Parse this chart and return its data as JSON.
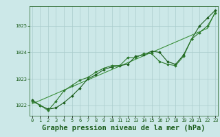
{
  "title": "Graphe pression niveau de la mer (hPa)",
  "xlabel_hours": [
    0,
    1,
    2,
    3,
    4,
    5,
    6,
    7,
    8,
    9,
    10,
    11,
    12,
    13,
    14,
    15,
    16,
    17,
    18,
    19,
    20,
    21,
    22,
    23
  ],
  "ylim": [
    1021.6,
    1025.75
  ],
  "yticks": [
    1022,
    1023,
    1024,
    1025
  ],
  "background_color": "#cce8e8",
  "grid_color": "#aacccc",
  "line_color": "#1a5c1a",
  "line_color2": "#2d7a2d",
  "line_color3": "#3a8f3a",
  "series1": [
    1022.2,
    1022.0,
    1021.85,
    1021.9,
    1022.1,
    1022.35,
    1022.65,
    1023.0,
    1023.15,
    1023.35,
    1023.45,
    1023.5,
    1023.55,
    1023.85,
    1023.9,
    1024.05,
    1024.0,
    1023.65,
    1023.55,
    1023.9,
    1024.5,
    1025.0,
    1025.3,
    1025.6
  ],
  "series2": [
    1022.15,
    1022.0,
    1021.8,
    1022.15,
    1022.55,
    1022.75,
    1022.95,
    1023.05,
    1023.25,
    1023.4,
    1023.5,
    1023.5,
    1023.8,
    1023.8,
    1023.95,
    1023.95,
    1023.65,
    1023.55,
    1023.5,
    1023.85,
    1024.5,
    1024.75,
    1025.0,
    1025.5
  ],
  "series3_linear": [
    1022.05,
    1022.18,
    1022.31,
    1022.44,
    1022.57,
    1022.7,
    1022.83,
    1022.96,
    1023.09,
    1023.22,
    1023.35,
    1023.48,
    1023.61,
    1023.74,
    1023.87,
    1024.0,
    1024.13,
    1024.26,
    1024.39,
    1024.52,
    1024.65,
    1024.78,
    1024.91,
    1025.55
  ],
  "marker": "D",
  "marker_size": 1.8,
  "line_width": 0.8,
  "title_fontsize": 7.5,
  "tick_fontsize": 5.0,
  "font_family": "monospace"
}
